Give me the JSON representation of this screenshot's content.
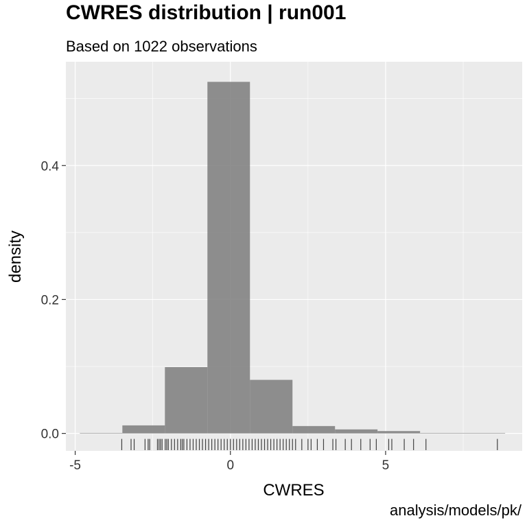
{
  "chart_data": {
    "type": "bar",
    "title": "CWRES distribution | run001",
    "subtitle": "Based on 1022 observations",
    "caption": "analysis/models/pk/",
    "xlabel": "CWRES",
    "ylabel": "density",
    "xlim": [
      -5.3,
      9.4
    ],
    "ylim": [
      -0.026,
      0.555
    ],
    "x_ticks": [
      -5,
      0,
      5
    ],
    "y_ticks": [
      0.0,
      0.2,
      0.4
    ],
    "y_tick_labels": [
      "0.0",
      "0.2",
      "0.4"
    ],
    "grid": true,
    "legend": "none",
    "bins": [
      {
        "x0": -4.85,
        "x1": -3.48,
        "density": 0.0007
      },
      {
        "x0": -3.48,
        "x1": -2.11,
        "density": 0.012
      },
      {
        "x0": -2.11,
        "x1": -0.74,
        "density": 0.099
      },
      {
        "x0": -0.74,
        "x1": 0.63,
        "density": 0.525
      },
      {
        "x0": 0.63,
        "x1": 2.0,
        "density": 0.08
      },
      {
        "x0": 2.0,
        "x1": 3.37,
        "density": 0.011
      },
      {
        "x0": 3.37,
        "x1": 4.74,
        "density": 0.006
      },
      {
        "x0": 4.74,
        "x1": 6.11,
        "density": 0.0035
      },
      {
        "x0": 6.11,
        "x1": 8.85,
        "density": 0.0007
      }
    ],
    "rug": [
      -3.5,
      -3.2,
      -3.1,
      -2.75,
      -2.65,
      -2.6,
      -2.35,
      -2.3,
      -2.25,
      -2.2,
      -2.1,
      -2.05,
      -2.0,
      -1.9,
      -1.8,
      -1.7,
      -1.6,
      -1.55,
      -1.5,
      -1.4,
      -1.3,
      -1.2,
      -1.1,
      -1.0,
      -0.9,
      -0.8,
      -0.7,
      -0.6,
      -0.5,
      -0.4,
      -0.3,
      -0.2,
      -0.1,
      0.0,
      0.1,
      0.2,
      0.3,
      0.4,
      0.5,
      0.6,
      0.7,
      0.8,
      0.9,
      1.0,
      1.1,
      1.2,
      1.3,
      1.4,
      1.5,
      1.6,
      1.7,
      1.8,
      1.9,
      2.0,
      2.1,
      2.3,
      2.5,
      2.6,
      2.8,
      3.0,
      3.3,
      3.4,
      3.7,
      3.9,
      4.2,
      4.5,
      4.7,
      5.1,
      5.2,
      5.6,
      5.9,
      6.3,
      8.6
    ],
    "colors": {
      "panel": "#EBEBEB",
      "grid": "#FFFFFF",
      "bar": "#808080",
      "rug": "#404040"
    }
  }
}
